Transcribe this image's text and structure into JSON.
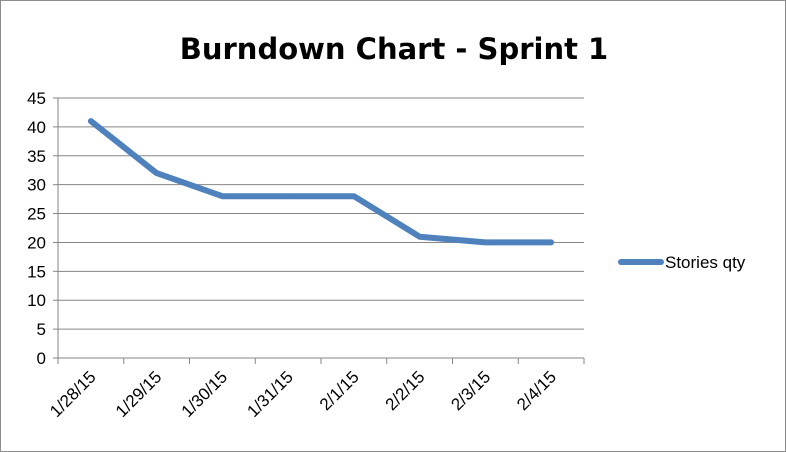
{
  "chart_data": {
    "type": "line",
    "title": "Burndown Chart - Sprint 1",
    "xlabel": "",
    "ylabel": "",
    "categories": [
      "1/28/15",
      "1/29/15",
      "1/30/15",
      "1/31/15",
      "2/1/15",
      "2/2/15",
      "2/3/15",
      "2/4/15"
    ],
    "series": [
      {
        "name": "Stories qty",
        "values": [
          41,
          32,
          28,
          28,
          28,
          21,
          20,
          20
        ]
      }
    ],
    "ylim": [
      0,
      45
    ],
    "yticks": [
      0,
      5,
      10,
      15,
      20,
      25,
      30,
      35,
      40,
      45
    ],
    "grid": true,
    "legend": "right",
    "colors": {
      "series": "#4f81bd",
      "grid": "#868686",
      "axis": "#868686",
      "text": "#000000"
    }
  }
}
